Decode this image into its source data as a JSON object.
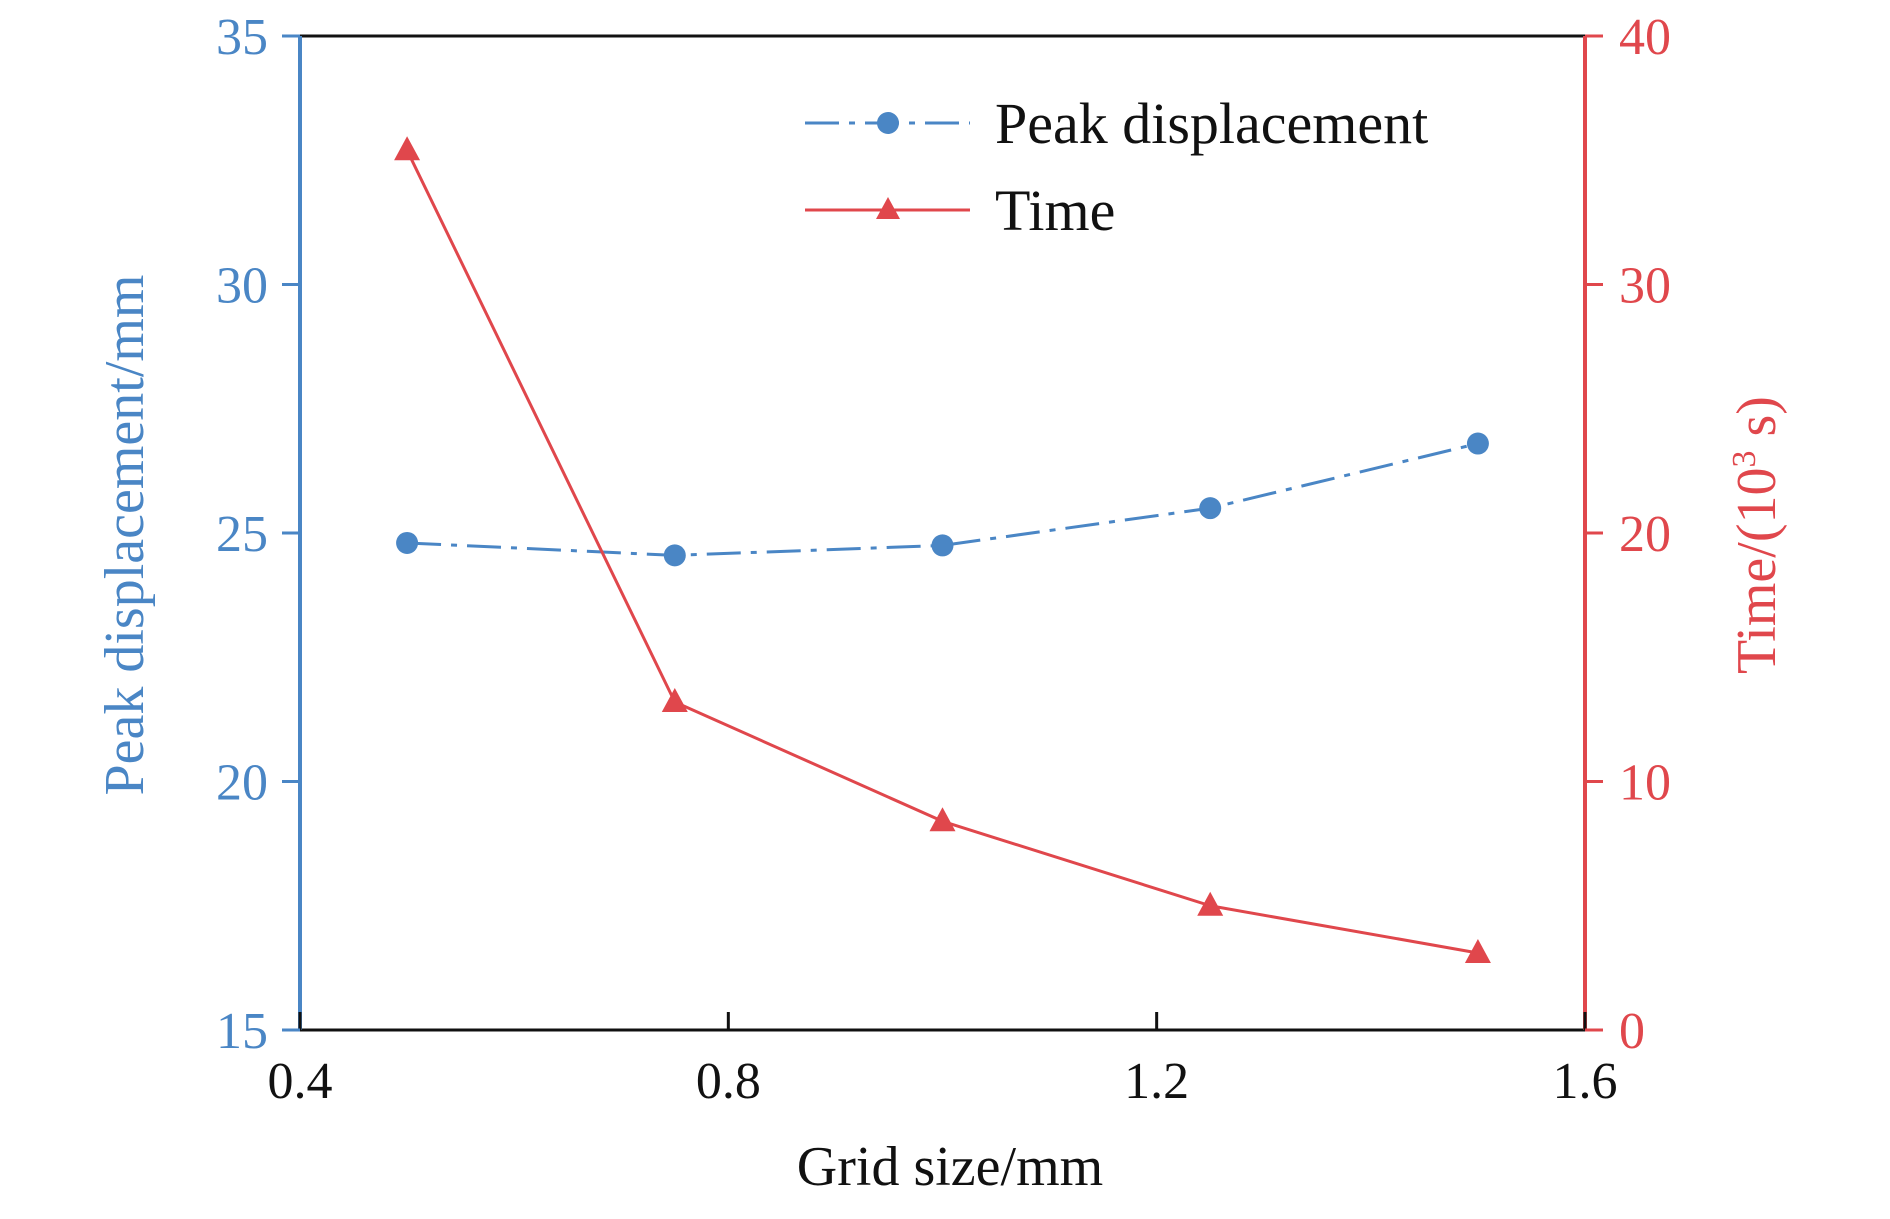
{
  "chart_data": {
    "type": "line",
    "xlabel": "Grid size/mm",
    "xlim": [
      0.4,
      1.6
    ],
    "xticks": [
      "0.4",
      "0.8",
      "1.2",
      "1.6"
    ],
    "x": [
      0.5,
      0.75,
      1.0,
      1.25,
      1.5
    ],
    "y_left": {
      "label": "Peak displacement/mm",
      "lim": [
        15,
        35
      ],
      "ticks": [
        "15",
        "20",
        "25",
        "30",
        "35"
      ],
      "color": "#4a86c5"
    },
    "y_right": {
      "label_main": "Time/(10",
      "label_sup": "3",
      "label_tail": " s)",
      "lim": [
        0,
        40
      ],
      "ticks": [
        "0",
        "10",
        "20",
        "30",
        "40"
      ],
      "color": "#e0474c"
    },
    "series": [
      {
        "name": "Peak displacement",
        "axis": "left",
        "values": [
          24.8,
          24.55,
          24.75,
          25.5,
          26.8
        ],
        "color": "#4a86c5",
        "line_style": "dash-dot",
        "marker": "circle"
      },
      {
        "name": "Time",
        "axis": "right",
        "values": [
          35.4,
          13.2,
          8.4,
          5.0,
          3.1
        ],
        "color": "#e0474c",
        "line_style": "solid",
        "marker": "triangle"
      }
    ],
    "legend": "top-right",
    "grid": false
  }
}
